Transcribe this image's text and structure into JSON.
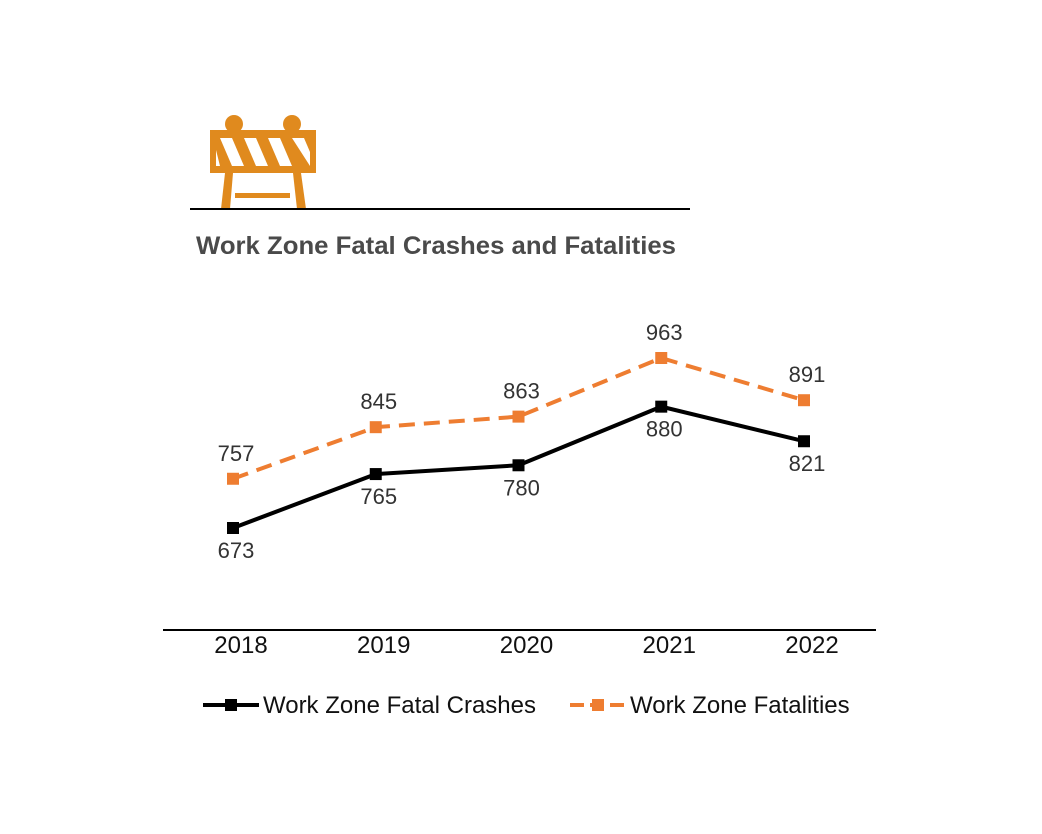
{
  "chart_data": {
    "type": "line",
    "title": "Work Zone Fatal Crashes and Fatalities",
    "icon": "road-barricade-icon",
    "categories": [
      "2018",
      "2019",
      "2020",
      "2021",
      "2022"
    ],
    "series": [
      {
        "name": "Work Zone Fatal Crashes",
        "values": [
          673,
          765,
          780,
          880,
          821
        ],
        "color": "#000000",
        "style": "solid",
        "label_position": "below"
      },
      {
        "name": "Work Zone Fatalities",
        "values": [
          757,
          845,
          863,
          963,
          891
        ],
        "color": "#ee7d31",
        "style": "dashed",
        "label_position": "above"
      }
    ],
    "xlabel": "",
    "ylabel": "",
    "grid": false,
    "legend_position": "bottom",
    "colors": {
      "icon": "#e08a1e",
      "title": "#4a4a4a"
    }
  }
}
